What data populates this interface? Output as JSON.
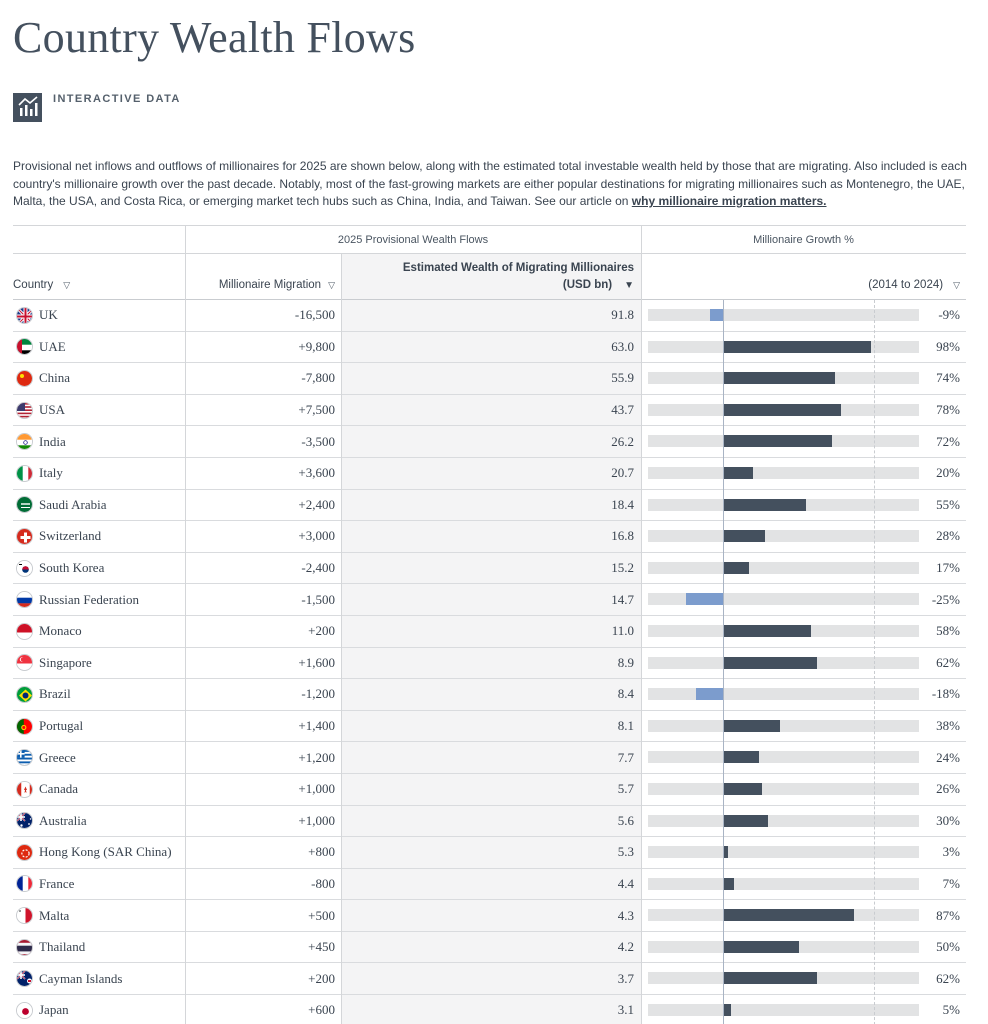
{
  "title": "Country Wealth Flows",
  "badge": {
    "label": "INTERACTIVE DATA",
    "icon": "bar-chart-icon"
  },
  "intro": {
    "text": "Provisional net inflows and outflows of millionaires for 2025 are shown below, along with the estimated total investable wealth held by those that are migrating. Also included is each country's millionaire growth over the past decade. Notably, most of the fast-growing markets are either popular destinations for migrating millionaires such as Montenegro, the UAE, Malta, the USA, and Costa Rica, or emerging market tech hubs such as China, India, and Taiwan. See our article on ",
    "link": "why millionaire migration matters."
  },
  "table": {
    "group_headers": {
      "flows": "2025 Provisional Wealth Flows",
      "growth": "Millionaire Growth %"
    },
    "columns": {
      "country": "Country",
      "migration": "Millionaire Migration",
      "wealth_line1": "Estimated Wealth of Migrating Millionaires",
      "wealth_line2": "(USD bn)",
      "growth": "(2014 to 2024)"
    },
    "sort_icons": {
      "filter": "▽",
      "active": "▼"
    },
    "accent_colors": {
      "positive": "#44505e",
      "negative": "#7c9ccd"
    },
    "growth_scale": [
      -50,
      130
    ],
    "rows": [
      {
        "country": "UK",
        "migration": "-16,500",
        "wealth": "91.8",
        "growth": -9,
        "growth_label": "-9%",
        "flag": "uk"
      },
      {
        "country": "UAE",
        "migration": "+9,800",
        "wealth": "63.0",
        "growth": 98,
        "growth_label": "98%",
        "flag": "uae"
      },
      {
        "country": "China",
        "migration": "-7,800",
        "wealth": "55.9",
        "growth": 74,
        "growth_label": "74%",
        "flag": "china"
      },
      {
        "country": "USA",
        "migration": "+7,500",
        "wealth": "43.7",
        "growth": 78,
        "growth_label": "78%",
        "flag": "usa"
      },
      {
        "country": "India",
        "migration": "-3,500",
        "wealth": "26.2",
        "growth": 72,
        "growth_label": "72%",
        "flag": "india"
      },
      {
        "country": "Italy",
        "migration": "+3,600",
        "wealth": "20.7",
        "growth": 20,
        "growth_label": "20%",
        "flag": "italy"
      },
      {
        "country": "Saudi Arabia",
        "migration": "+2,400",
        "wealth": "18.4",
        "growth": 55,
        "growth_label": "55%",
        "flag": "saudi"
      },
      {
        "country": "Switzerland",
        "migration": "+3,000",
        "wealth": "16.8",
        "growth": 28,
        "growth_label": "28%",
        "flag": "swiss"
      },
      {
        "country": "South Korea",
        "migration": "-2,400",
        "wealth": "15.2",
        "growth": 17,
        "growth_label": "17%",
        "flag": "korea"
      },
      {
        "country": "Russian Federation",
        "migration": "-1,500",
        "wealth": "14.7",
        "growth": -25,
        "growth_label": "-25%",
        "flag": "russia"
      },
      {
        "country": "Monaco",
        "migration": "+200",
        "wealth": "11.0",
        "growth": 58,
        "growth_label": "58%",
        "flag": "monaco"
      },
      {
        "country": "Singapore",
        "migration": "+1,600",
        "wealth": "8.9",
        "growth": 62,
        "growth_label": "62%",
        "flag": "singapore"
      },
      {
        "country": "Brazil",
        "migration": "-1,200",
        "wealth": "8.4",
        "growth": -18,
        "growth_label": "-18%",
        "flag": "brazil"
      },
      {
        "country": "Portugal",
        "migration": "+1,400",
        "wealth": "8.1",
        "growth": 38,
        "growth_label": "38%",
        "flag": "portugal"
      },
      {
        "country": "Greece",
        "migration": "+1,200",
        "wealth": "7.7",
        "growth": 24,
        "growth_label": "24%",
        "flag": "greece"
      },
      {
        "country": "Canada",
        "migration": "+1,000",
        "wealth": "5.7",
        "growth": 26,
        "growth_label": "26%",
        "flag": "canada"
      },
      {
        "country": "Australia",
        "migration": "+1,000",
        "wealth": "5.6",
        "growth": 30,
        "growth_label": "30%",
        "flag": "australia"
      },
      {
        "country": "Hong Kong (SAR China)",
        "migration": "+800",
        "wealth": "5.3",
        "growth": 3,
        "growth_label": "3%",
        "flag": "hongkong"
      },
      {
        "country": "France",
        "migration": "-800",
        "wealth": "4.4",
        "growth": 7,
        "growth_label": "7%",
        "flag": "france"
      },
      {
        "country": "Malta",
        "migration": "+500",
        "wealth": "4.3",
        "growth": 87,
        "growth_label": "87%",
        "flag": "malta"
      },
      {
        "country": "Thailand",
        "migration": "+450",
        "wealth": "4.2",
        "growth": 50,
        "growth_label": "50%",
        "flag": "thailand"
      },
      {
        "country": "Cayman Islands",
        "migration": "+200",
        "wealth": "3.7",
        "growth": 62,
        "growth_label": "62%",
        "flag": "cayman"
      },
      {
        "country": "Japan",
        "migration": "+600",
        "wealth": "3.1",
        "growth": 5,
        "growth_label": "5%",
        "flag": "japan"
      }
    ]
  }
}
